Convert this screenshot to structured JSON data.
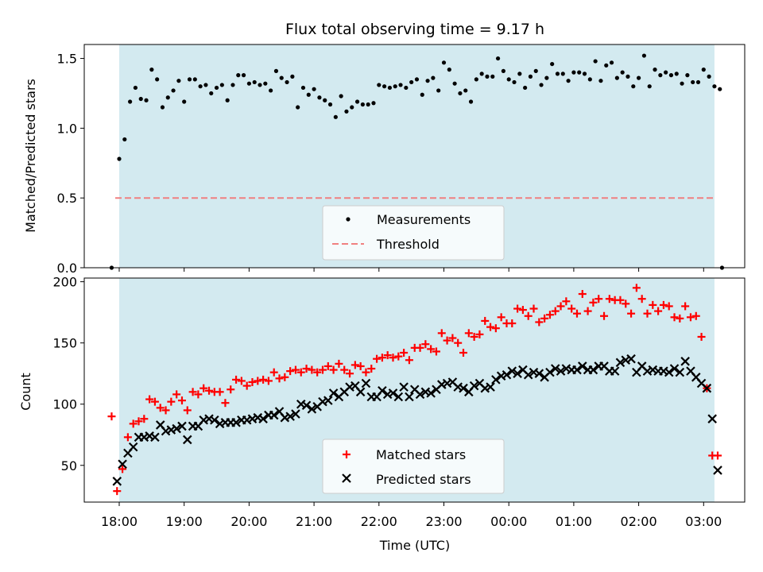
{
  "chart_data": [
    {
      "type": "scatter",
      "title": "Flux total observing time = 9.17 h",
      "ylabel": "Matched/Predicted stars",
      "xlabel": "",
      "ylim": [
        0,
        1.6
      ],
      "yticks": [
        "0.0",
        "0.5",
        "1.0",
        "1.5"
      ],
      "shaded_span": {
        "start": "18:00",
        "end": "03:10",
        "color": "#d3eaf0"
      },
      "threshold": {
        "name": "Threshold",
        "value": 0.5,
        "color": "#f08080",
        "style": "dashed"
      },
      "legend": {
        "placement": "lower center",
        "entries": [
          "Measurements",
          "Threshold"
        ]
      },
      "series": [
        {
          "name": "Measurements",
          "marker": "dot",
          "color": "#000000",
          "x_start": "18:00",
          "step_minutes": 5,
          "values": [
            0.78,
            0.92,
            1.19,
            1.29,
            1.21,
            1.2,
            1.42,
            1.35,
            1.15,
            1.22,
            1.27,
            1.34,
            1.19,
            1.35,
            1.35,
            1.3,
            1.31,
            1.25,
            1.29,
            1.31,
            1.2,
            1.31,
            1.38,
            1.38,
            1.32,
            1.33,
            1.31,
            1.32,
            1.27,
            1.41,
            1.36,
            1.33,
            1.37,
            1.15,
            1.29,
            1.24,
            1.28,
            1.22,
            1.2,
            1.17,
            1.08,
            1.23,
            1.12,
            1.15,
            1.19,
            1.17,
            1.17,
            1.18,
            1.31,
            1.3,
            1.29,
            1.3,
            1.31,
            1.29,
            1.33,
            1.35,
            1.24,
            1.34,
            1.36,
            1.27,
            1.47,
            1.42,
            1.32,
            1.25,
            1.27,
            1.19,
            1.35,
            1.39,
            1.37,
            1.37,
            1.5,
            1.41,
            1.35,
            1.33,
            1.39,
            1.29,
            1.37,
            1.41,
            1.31,
            1.36,
            1.46,
            1.39,
            1.39,
            1.34,
            1.4,
            1.4,
            1.39,
            1.35,
            1.48,
            1.34,
            1.45,
            1.47,
            1.36,
            1.4,
            1.37,
            1.3,
            1.36,
            1.52,
            1.3,
            1.42,
            1.38,
            1.4,
            1.38,
            1.39,
            1.32,
            1.38,
            1.33,
            1.33,
            1.42,
            1.37,
            1.3,
            1.28
          ],
          "extra_points": [
            {
              "x": "17:53",
              "y": 0.0
            },
            {
              "x": "03:17",
              "y": 0.0
            }
          ]
        }
      ]
    },
    {
      "type": "scatter",
      "xlabel": "Time (UTC)",
      "ylabel": "Count",
      "ylim": [
        20,
        203
      ],
      "yticks": [
        "50",
        "100",
        "150",
        "200"
      ],
      "xticks": [
        "18:00",
        "19:00",
        "20:00",
        "21:00",
        "22:00",
        "23:00",
        "00:00",
        "01:00",
        "02:00",
        "03:00"
      ],
      "legend": {
        "placement": "lower center",
        "entries": [
          "Matched stars",
          "Predicted stars"
        ]
      },
      "series": [
        {
          "name": "Matched stars",
          "marker": "plus",
          "color": "#ff0000",
          "x_start": "17:53",
          "step_minutes": 5,
          "values": [
            90,
            29,
            47,
            73,
            84,
            86,
            88,
            104,
            102,
            97,
            95,
            102,
            108,
            103,
            95,
            110,
            108,
            113,
            111,
            110,
            110,
            101,
            112,
            120,
            119,
            115,
            118,
            119,
            120,
            119,
            126,
            121,
            122,
            127,
            128,
            126,
            129,
            128,
            126,
            128,
            131,
            128,
            133,
            128,
            125,
            132,
            131,
            126,
            129,
            137,
            138,
            140,
            138,
            139,
            142,
            136,
            146,
            146,
            149,
            145,
            143,
            158,
            152,
            154,
            150,
            142,
            158,
            155,
            157,
            168,
            163,
            162,
            171,
            166,
            166,
            178,
            177,
            172,
            178,
            167,
            170,
            173,
            176,
            180,
            184,
            178,
            174,
            190,
            176,
            183,
            186,
            172,
            186,
            185,
            185,
            182,
            174,
            195,
            186,
            174,
            181,
            176,
            181,
            180,
            171,
            170,
            180,
            171,
            172,
            155,
            113,
            58,
            58
          ]
        },
        {
          "name": "Predicted stars",
          "marker": "x",
          "color": "#000000",
          "x_start": "17:58",
          "step_minutes": 5,
          "values": [
            37,
            51,
            60,
            65,
            73,
            73,
            74,
            73,
            83,
            78,
            79,
            80,
            82,
            71,
            82,
            82,
            87,
            88,
            87,
            84,
            85,
            85,
            85,
            87,
            87,
            88,
            89,
            88,
            91,
            91,
            94,
            89,
            90,
            92,
            100,
            99,
            96,
            98,
            102,
            103,
            109,
            106,
            110,
            114,
            115,
            110,
            117,
            106,
            106,
            111,
            108,
            109,
            106,
            114,
            106,
            112,
            108,
            110,
            109,
            112,
            116,
            117,
            118,
            114,
            113,
            110,
            115,
            117,
            113,
            114,
            120,
            123,
            124,
            127,
            125,
            128,
            124,
            126,
            125,
            122,
            126,
            129,
            127,
            129,
            128,
            128,
            131,
            128,
            128,
            131,
            131,
            127,
            127,
            134,
            136,
            137,
            126,
            131,
            127,
            128,
            127,
            127,
            126,
            129,
            126,
            135,
            127,
            122,
            117,
            113,
            88,
            46
          ]
        }
      ]
    }
  ]
}
